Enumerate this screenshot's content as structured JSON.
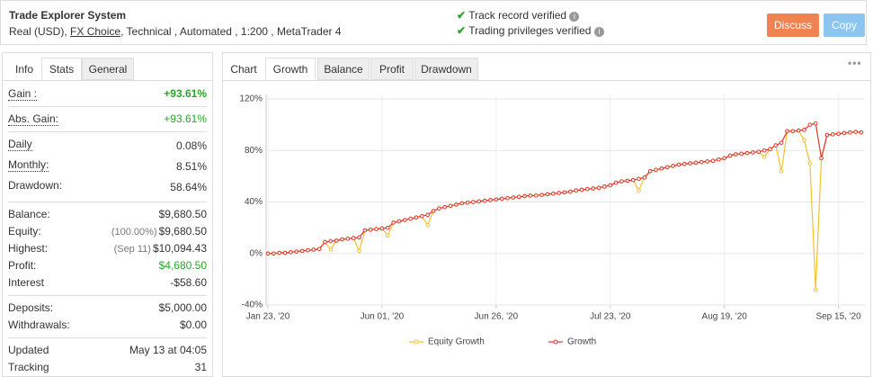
{
  "header": {
    "title": "Trade Explorer System",
    "account": "Real (USD),",
    "broker": "FX Choice",
    "details": ", Technical , Automated , 1:200 , MetaTrader 4",
    "verified": [
      "Track record verified",
      "Trading privileges verified"
    ],
    "buttons": [
      "Discuss",
      "Copy"
    ]
  },
  "stats": {
    "tabs": [
      "Info",
      "Stats",
      "General"
    ],
    "groups": [
      [
        {
          "label": "Gain :",
          "value": "+93.61%"
        }
      ],
      [
        {
          "label": "Abs. Gain:",
          "value": "+93.61%"
        }
      ],
      [
        {
          "label": "Daily",
          "value": "0.08%"
        },
        {
          "label": "Monthly:",
          "value": "8.51%"
        },
        {
          "label": "Drawdown:",
          "value": "58.64%"
        }
      ],
      [
        {
          "label": "Balance:",
          "value": "$9,680.50"
        },
        {
          "label": "Equity:",
          "note": "(100.00%)",
          "value": "$9,680.50"
        },
        {
          "label": "Highest:",
          "note": "(Sep 11)",
          "value": "$10,094.43"
        },
        {
          "label": "Profit:",
          "value": "$4,680.50"
        },
        {
          "label": "Interest",
          "value": "-$58.60"
        }
      ],
      [
        {
          "label": "Deposits:",
          "value": "$5,000.00"
        },
        {
          "label": "Withdrawals:",
          "value": "$0.00"
        }
      ],
      [
        {
          "label": "Updated",
          "value": "May 13 at 04:05"
        },
        {
          "label": "Tracking",
          "value": "31"
        }
      ]
    ]
  },
  "chart_tabs": [
    "Chart",
    "Growth",
    "Balance",
    "Profit",
    "Drawdown"
  ],
  "chart_data": {
    "type": "line",
    "grid": true,
    "categories": [
      "Jan 23, '20",
      null,
      null,
      null,
      null,
      null,
      null,
      null,
      null,
      null,
      null,
      null,
      null,
      null,
      null,
      null,
      null,
      null,
      null,
      null,
      "Jun 01, '20",
      null,
      null,
      null,
      null,
      null,
      null,
      null,
      null,
      null,
      null,
      null,
      null,
      null,
      null,
      null,
      null,
      null,
      null,
      null,
      "Jun 26, '20",
      null,
      null,
      null,
      null,
      null,
      null,
      null,
      null,
      null,
      null,
      null,
      null,
      null,
      null,
      null,
      null,
      null,
      null,
      null,
      "Jul 23, '20",
      null,
      null,
      null,
      null,
      null,
      null,
      null,
      null,
      null,
      null,
      null,
      null,
      null,
      null,
      null,
      null,
      null,
      null,
      null,
      "Aug 19, '20",
      null,
      null,
      null,
      null,
      null,
      null,
      null,
      null,
      null,
      null,
      null,
      null,
      null,
      null,
      null,
      null,
      null,
      null,
      null,
      "Sep 15, '20",
      null,
      null,
      null,
      null
    ],
    "series": [
      {
        "name": "Equity Growth",
        "color": "#f2c12e",
        "values": [
          0,
          0,
          0.5,
          0.5,
          1,
          1.5,
          2,
          2.5,
          3,
          3.5,
          9,
          3,
          10,
          11,
          11.5,
          12,
          2,
          18,
          18.5,
          19,
          19.5,
          14,
          24,
          25,
          26,
          27,
          28,
          29,
          22,
          33,
          35,
          36,
          37,
          38,
          39,
          39.5,
          40,
          40.5,
          41,
          41.5,
          42,
          42.5,
          43,
          43.5,
          44,
          44.5,
          45,
          45,
          45.5,
          46,
          46.5,
          47,
          47.5,
          48,
          49,
          49.5,
          50,
          50.5,
          51,
          52,
          53,
          55,
          56,
          56.5,
          57,
          49,
          59,
          64,
          65,
          66,
          67,
          68,
          69,
          69.5,
          70,
          70.5,
          71,
          71.5,
          72,
          73,
          74,
          76,
          77,
          77.5,
          78,
          78.5,
          79,
          75,
          81,
          84,
          64,
          95,
          95,
          95.5,
          88,
          70,
          -28,
          74,
          92,
          92.5,
          93,
          93.5,
          94,
          94.5,
          94
        ]
      },
      {
        "name": "Growth",
        "color": "#e0352b",
        "values": [
          0,
          0,
          0.5,
          0.5,
          1,
          1.5,
          2,
          2.5,
          3,
          3.5,
          9,
          9.5,
          10,
          11,
          11.5,
          12,
          12.5,
          18,
          18.5,
          19,
          19.5,
          20,
          24,
          25,
          26,
          27,
          28,
          29,
          30,
          33,
          35,
          36,
          37,
          38,
          39,
          39.5,
          40,
          40.5,
          41,
          41.5,
          42,
          42.5,
          43,
          43.5,
          44,
          44.5,
          45,
          45,
          45.5,
          46,
          46.5,
          47,
          47.5,
          48,
          49,
          49.5,
          50,
          50.5,
          51,
          52,
          53,
          55,
          56,
          56.5,
          57,
          58,
          59,
          64,
          65,
          66,
          67,
          68,
          69,
          69.5,
          70,
          70.5,
          71,
          71.5,
          72,
          73,
          74,
          76,
          77,
          77.5,
          78,
          78.5,
          79,
          80,
          81,
          84,
          86,
          95,
          95,
          95.5,
          96,
          100,
          101,
          74,
          92,
          92.5,
          93,
          93.5,
          94,
          94.5,
          94
        ]
      }
    ],
    "ylim": [
      -40,
      120
    ],
    "yticks": [
      {
        "value": -40,
        "label": "-40%"
      },
      {
        "value": 0,
        "label": "0%"
      },
      {
        "value": 40,
        "label": "40%"
      },
      {
        "value": 80,
        "label": "80%"
      },
      {
        "value": 120,
        "label": "120%"
      }
    ]
  }
}
